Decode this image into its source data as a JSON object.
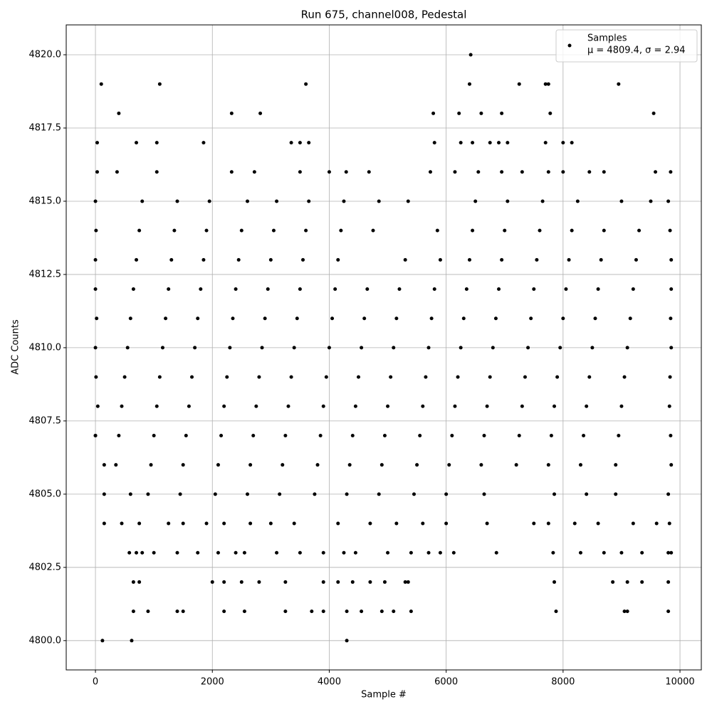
{
  "chart_data": {
    "type": "scatter",
    "title": "Run 675, channel008, Pedestal",
    "x_label": "Sample #",
    "y_label": "ADC Counts",
    "xlim": [
      -500,
      10365
    ],
    "ylim": [
      4799,
      4821.02
    ],
    "xticks": [
      0,
      2000,
      4000,
      6000,
      8000,
      10000
    ],
    "yticks": [
      {
        "value": 4800,
        "label": "4800.0"
      },
      {
        "value": 4802.5,
        "label": "4802.5"
      },
      {
        "value": 4805,
        "label": "4805.0"
      },
      {
        "value": 4807.5,
        "label": "4807.5"
      },
      {
        "value": 4810,
        "label": "4810.0"
      },
      {
        "value": 4812.5,
        "label": "4812.5"
      },
      {
        "value": 4815,
        "label": "4815.0"
      },
      {
        "value": 4817.5,
        "label": "4817.5"
      },
      {
        "value": 4820,
        "label": "4820.0"
      }
    ],
    "grid": true,
    "legend_position": "upper right",
    "legend_note": "μ = 4809.4, σ = 2.94",
    "series": [
      {
        "name": "Samples",
        "color": "#000000",
        "x": [
          0,
          550,
          1150,
          1700,
          2300,
          2850,
          3400,
          4000,
          4550,
          5100,
          5700,
          6250,
          6800,
          7400,
          7950,
          8500,
          9100,
          9850,
          20,
          600,
          1200,
          1750,
          2350,
          2900,
          3450,
          4050,
          4600,
          5150,
          5750,
          6300,
          6850,
          7450,
          8000,
          8550,
          9150,
          9840,
          10,
          500,
          1100,
          1650,
          2250,
          2800,
          3350,
          3950,
          4500,
          5050,
          5650,
          6200,
          6750,
          7350,
          7900,
          8450,
          9050,
          9830,
          0,
          650,
          1250,
          1800,
          2400,
          2950,
          3500,
          4100,
          4650,
          5200,
          5800,
          6350,
          6900,
          7500,
          8050,
          8600,
          9200,
          9850,
          40,
          450,
          1050,
          1600,
          2200,
          2750,
          3300,
          3900,
          4450,
          5000,
          5600,
          6150,
          6700,
          7300,
          7850,
          8400,
          9000,
          9820,
          0,
          700,
          1300,
          1850,
          2450,
          3000,
          3550,
          4150,
          5300,
          5900,
          6400,
          6950,
          7550,
          8100,
          8650,
          9250,
          9850,
          0,
          400,
          1000,
          1550,
          2150,
          2700,
          3250,
          3850,
          4400,
          4950,
          5550,
          6100,
          6650,
          7250,
          7800,
          8350,
          8950,
          9840,
          10,
          750,
          1350,
          1900,
          2500,
          3050,
          3600,
          4200,
          4750,
          5850,
          6450,
          7000,
          7600,
          8150,
          8700,
          9300,
          9830,
          150,
          350,
          950,
          1500,
          2100,
          2650,
          3200,
          3800,
          4350,
          4900,
          5500,
          6050,
          6600,
          7200,
          7750,
          8300,
          8900,
          9850,
          0,
          800,
          1400,
          1950,
          2600,
          3100,
          3650,
          4250,
          4850,
          5350,
          6500,
          7050,
          7650,
          8250,
          9000,
          9500,
          9800,
          150,
          600,
          900,
          1450,
          2050,
          2600,
          3150,
          3750,
          4300,
          4850,
          5450,
          6000,
          6650,
          7850,
          8400,
          8900,
          9800,
          30,
          370,
          1050,
          2330,
          2720,
          3500,
          4000,
          4290,
          4680,
          5730,
          6150,
          6550,
          6950,
          7300,
          7750,
          8000,
          8450,
          8700,
          9580,
          9840,
          150,
          450,
          750,
          1250,
          1500,
          1900,
          2200,
          2650,
          3000,
          3400,
          4150,
          4700,
          5150,
          5600,
          6000,
          6700,
          7500,
          7750,
          8200,
          8600,
          9200,
          9600,
          9820,
          30,
          700,
          1050,
          1850,
          3350,
          3500,
          3650,
          5800,
          6250,
          6450,
          6750,
          6900,
          7050,
          7700,
          8000,
          8150,
          580,
          700,
          800,
          1000,
          1400,
          1750,
          2100,
          2400,
          2550,
          3100,
          3500,
          3900,
          4250,
          4450,
          5000,
          5400,
          5700,
          5900,
          6130,
          6860,
          7830,
          8300,
          8700,
          9000,
          9350,
          9800,
          9850,
          400,
          2330,
          2820,
          5780,
          6220,
          6600,
          6950,
          7780,
          9550,
          650,
          750,
          2000,
          2200,
          2500,
          2800,
          3250,
          3900,
          4150,
          4400,
          4700,
          4950,
          5300,
          5350,
          7850,
          8850,
          9100,
          9350,
          9800,
          100,
          1100,
          3600,
          6400,
          7250,
          7700,
          7750,
          8950,
          650,
          900,
          1400,
          1500,
          2200,
          2550,
          3250,
          3700,
          3900,
          4300,
          4550,
          4900,
          5100,
          5400,
          7880,
          9050,
          9100,
          9800,
          6420,
          120,
          620,
          4300,
          0
        ],
        "values": [
          4810,
          4810,
          4810,
          4810,
          4810,
          4810,
          4810,
          4810,
          4810,
          4810,
          4810,
          4810,
          4810,
          4810,
          4810,
          4810,
          4810,
          4810,
          4811,
          4811,
          4811,
          4811,
          4811,
          4811,
          4811,
          4811,
          4811,
          4811,
          4811,
          4811,
          4811,
          4811,
          4811,
          4811,
          4811,
          4811,
          4809,
          4809,
          4809,
          4809,
          4809,
          4809,
          4809,
          4809,
          4809,
          4809,
          4809,
          4809,
          4809,
          4809,
          4809,
          4809,
          4809,
          4809,
          4812,
          4812,
          4812,
          4812,
          4812,
          4812,
          4812,
          4812,
          4812,
          4812,
          4812,
          4812,
          4812,
          4812,
          4812,
          4812,
          4812,
          4812,
          4808,
          4808,
          4808,
          4808,
          4808,
          4808,
          4808,
          4808,
          4808,
          4808,
          4808,
          4808,
          4808,
          4808,
          4808,
          4808,
          4808,
          4808,
          4813,
          4813,
          4813,
          4813,
          4813,
          4813,
          4813,
          4813,
          4813,
          4813,
          4813,
          4813,
          4813,
          4813,
          4813,
          4813,
          4813,
          4807,
          4807,
          4807,
          4807,
          4807,
          4807,
          4807,
          4807,
          4807,
          4807,
          4807,
          4807,
          4807,
          4807,
          4807,
          4807,
          4807,
          4807,
          4814,
          4814,
          4814,
          4814,
          4814,
          4814,
          4814,
          4814,
          4814,
          4814,
          4814,
          4814,
          4814,
          4814,
          4814,
          4814,
          4814,
          4806,
          4806,
          4806,
          4806,
          4806,
          4806,
          4806,
          4806,
          4806,
          4806,
          4806,
          4806,
          4806,
          4806,
          4806,
          4806,
          4806,
          4806,
          4815,
          4815,
          4815,
          4815,
          4815,
          4815,
          4815,
          4815,
          4815,
          4815,
          4815,
          4815,
          4815,
          4815,
          4815,
          4815,
          4815,
          4805,
          4805,
          4805,
          4805,
          4805,
          4805,
          4805,
          4805,
          4805,
          4805,
          4805,
          4805,
          4805,
          4805,
          4805,
          4805,
          4805,
          4816,
          4816,
          4816,
          4816,
          4816,
          4816,
          4816,
          4816,
          4816,
          4816,
          4816,
          4816,
          4816,
          4816,
          4816,
          4816,
          4816,
          4816,
          4816,
          4816,
          4804,
          4804,
          4804,
          4804,
          4804,
          4804,
          4804,
          4804,
          4804,
          4804,
          4804,
          4804,
          4804,
          4804,
          4804,
          4804,
          4804,
          4804,
          4804,
          4804,
          4804,
          4804,
          4804,
          4817,
          4817,
          4817,
          4817,
          4817,
          4817,
          4817,
          4817,
          4817,
          4817,
          4817,
          4817,
          4817,
          4817,
          4817,
          4817,
          4803,
          4803,
          4803,
          4803,
          4803,
          4803,
          4803,
          4803,
          4803,
          4803,
          4803,
          4803,
          4803,
          4803,
          4803,
          4803,
          4803,
          4803,
          4803,
          4803,
          4803,
          4803,
          4803,
          4803,
          4803,
          4803,
          4803,
          4818,
          4818,
          4818,
          4818,
          4818,
          4818,
          4818,
          4818,
          4818,
          4802,
          4802,
          4802,
          4802,
          4802,
          4802,
          4802,
          4802,
          4802,
          4802,
          4802,
          4802,
          4802,
          4802,
          4802,
          4802,
          4802,
          4802,
          4802,
          4819,
          4819,
          4819,
          4819,
          4819,
          4819,
          4819,
          4819,
          4801,
          4801,
          4801,
          4801,
          4801,
          4801,
          4801,
          4801,
          4801,
          4801,
          4801,
          4801,
          4801,
          4801,
          4801,
          4801,
          4801,
          4801,
          4820,
          4800,
          4800,
          4800,
          4807
        ]
      }
    ]
  }
}
